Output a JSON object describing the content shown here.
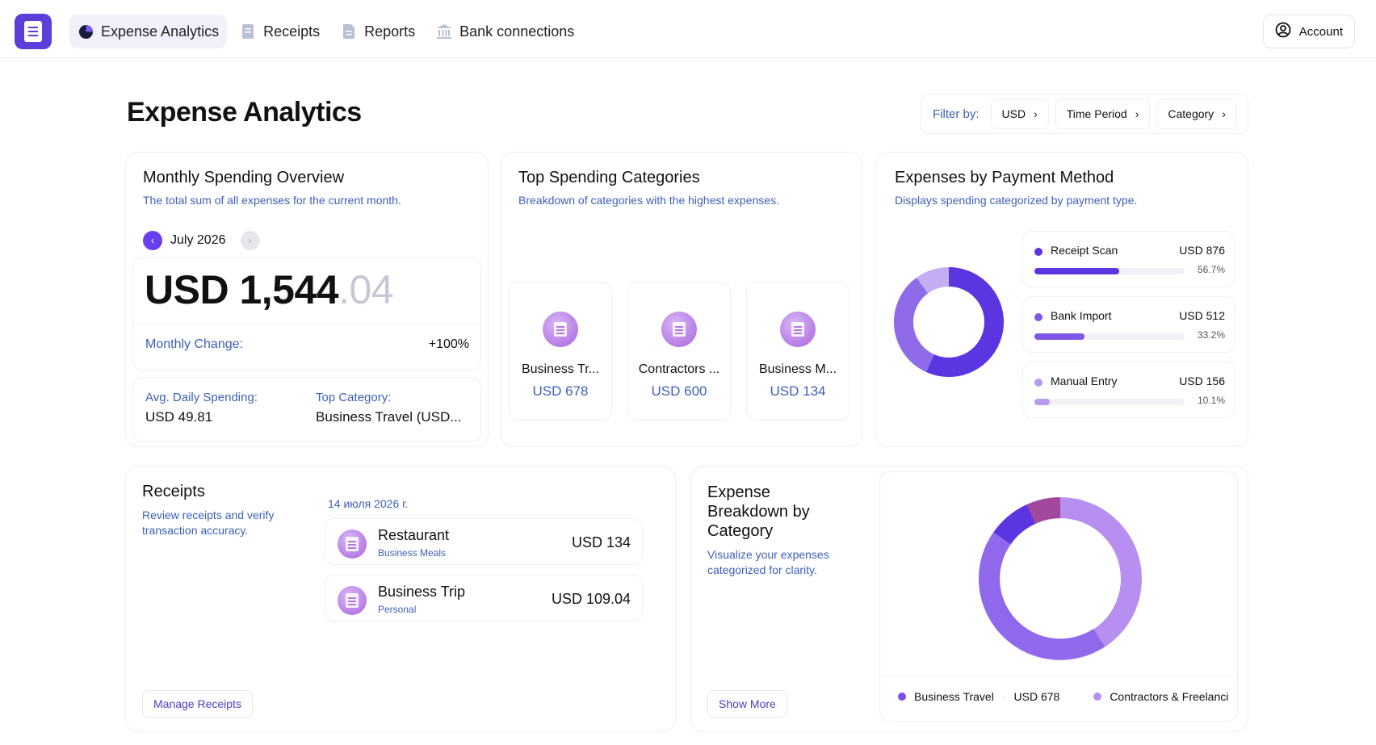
{
  "nav": {
    "items": [
      {
        "label": "Expense Analytics",
        "icon": "pie-chart-icon",
        "active": true
      },
      {
        "label": "Receipts",
        "icon": "receipt-icon",
        "active": false
      },
      {
        "label": "Reports",
        "icon": "document-icon",
        "active": false
      },
      {
        "label": "Bank connections",
        "icon": "bank-icon",
        "active": false
      }
    ],
    "account_label": "Account"
  },
  "page": {
    "title": "Expense Analytics",
    "filter_label": "Filter by:",
    "filters": [
      "USD",
      "Time Period",
      "Category"
    ]
  },
  "monthly": {
    "title": "Monthly Spending Overview",
    "subtitle": "The total sum of all expenses for the current month.",
    "month": "July 2026",
    "amount_main": "USD 1,544",
    "amount_cents": ".04",
    "change_label": "Monthly Change:",
    "change_value": "+100%",
    "avg_label": "Avg. Daily Spending:",
    "avg_value": "USD 49.81",
    "top_label": "Top Category:",
    "top_value": "Business Travel (USD..."
  },
  "top_categories": {
    "title": "Top Spending Categories",
    "subtitle": "Breakdown of categories with the highest expenses.",
    "items": [
      {
        "name": "Business Tr...",
        "amount": "USD 678"
      },
      {
        "name": "Contractors ...",
        "amount": "USD 600"
      },
      {
        "name": "Business M...",
        "amount": "USD 134"
      }
    ]
  },
  "payment": {
    "title": "Expenses by Payment Method",
    "subtitle": "Displays spending categorized by payment type.",
    "items": [
      {
        "name": "Receipt Scan",
        "amount": "USD 876",
        "pct": "56.7%",
        "share": 0.567,
        "color": "#5b35e0"
      },
      {
        "name": "Bank Import",
        "amount": "USD 512",
        "pct": "33.2%",
        "share": 0.332,
        "color": "#8f6bea"
      },
      {
        "name": "Manual Entry",
        "amount": "USD 156",
        "pct": "10.1%",
        "share": 0.101,
        "color": "#c5adf3"
      }
    ]
  },
  "receipts": {
    "title": "Receipts",
    "subtitle": "Review receipts and verify transaction accuracy.",
    "date": "14 июля 2026 г.",
    "items": [
      {
        "name": "Restaurant",
        "category": "Business Meals",
        "amount": "USD 134"
      },
      {
        "name": "Business Trip",
        "category": "Personal",
        "amount": "USD 109.04"
      }
    ],
    "manage_label": "Manage Receipts"
  },
  "breakdown": {
    "title": "Expense Breakdown by Category",
    "subtitle": "Visualize your expenses categorized for clarity.",
    "show_more_label": "Show More",
    "legend": [
      {
        "name": "Business Travel",
        "amount": "USD 678",
        "color": "#7d4fe6"
      },
      {
        "name": "Contractors & Freelanci",
        "amount": "",
        "color": "#b890ef"
      }
    ]
  }
}
